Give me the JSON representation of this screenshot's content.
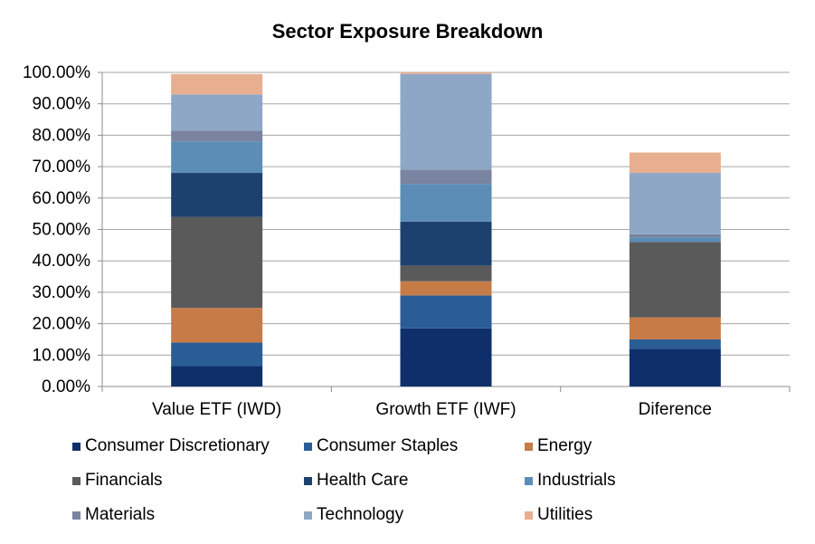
{
  "chart_data": {
    "type": "bar",
    "stacked": true,
    "title": "Sector Exposure Breakdown",
    "categories": [
      "Value ETF (IWD)",
      "Growth ETF (IWF)",
      "Diference"
    ],
    "ylim": [
      0,
      100
    ],
    "yticks": [
      "0.00%",
      "10.00%",
      "20.00%",
      "30.00%",
      "40.00%",
      "50.00%",
      "60.00%",
      "70.00%",
      "80.00%",
      "90.00%",
      "100.00%"
    ],
    "grid": true,
    "legend_position": "bottom",
    "series": [
      {
        "name": "Consumer Discretionary",
        "color": "#0f2f6b",
        "values": [
          6.5,
          18.5,
          12.0
        ]
      },
      {
        "name": "Consumer Staples",
        "color": "#2a5d95",
        "values": [
          7.5,
          10.5,
          3.0
        ]
      },
      {
        "name": "Energy",
        "color": "#c77b47",
        "values": [
          11.0,
          4.5,
          7.0
        ]
      },
      {
        "name": "Financials",
        "color": "#5a5a5a",
        "values": [
          29.0,
          5.0,
          24.0
        ]
      },
      {
        "name": "Health Care",
        "color": "#1d416e",
        "values": [
          14.0,
          14.0,
          0.0
        ]
      },
      {
        "name": "Industrials",
        "color": "#5b8db6",
        "values": [
          10.0,
          12.0,
          1.5
        ]
      },
      {
        "name": "Materials",
        "color": "#7a84a0",
        "values": [
          3.5,
          4.5,
          1.0
        ]
      },
      {
        "name": "Technology",
        "color": "#8ea7c6",
        "values": [
          11.5,
          30.5,
          19.5
        ]
      },
      {
        "name": "Utilities",
        "color": "#e7ae90",
        "values": [
          6.5,
          0.5,
          6.5
        ]
      }
    ]
  }
}
